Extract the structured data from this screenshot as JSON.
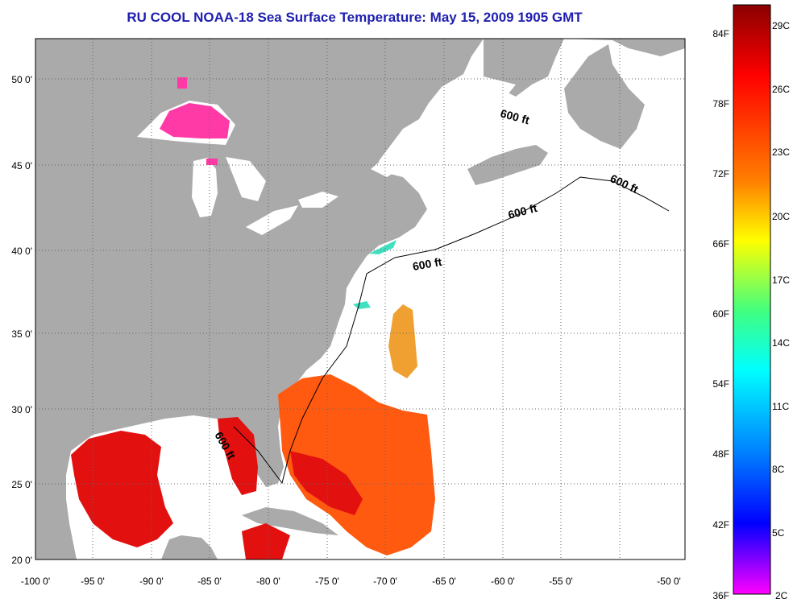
{
  "title": "RU COOL  NOAA-18  Sea Surface Temperature:  May 15, 2009 1905 GMT",
  "map": {
    "lon_labels": [
      "-100 0'",
      "-95 0'",
      "-90 0'",
      "-85 0'",
      "-80 0'",
      "-75 0'",
      "-70 0'",
      "-65 0'",
      "-60 0'",
      "-55 0'",
      "-50 0'"
    ],
    "lat_labels": [
      "50 0'",
      "45 0'",
      "40 0'",
      "35 0'",
      "30 0'",
      "25 0'",
      "20 0'"
    ],
    "isobath_labels": [
      "600 ft",
      "600 ft",
      "600 ft",
      "600 ft",
      "600 ft"
    ],
    "colors": {
      "land": "#aaaaaa",
      "ocean_missing": "#ffffff",
      "warm_water": "#e31010",
      "mid_water": "#ff6a10",
      "orange_water": "#f0a030",
      "cold_lake": "#ff3aa6",
      "coastal_cool": "#40e0c0"
    }
  },
  "colorbar": {
    "fahrenheit_labels": [
      "84F",
      "78F",
      "72F",
      "66F",
      "60F",
      "54F",
      "48F",
      "42F",
      "36F"
    ],
    "celsius_labels": [
      "29C",
      "26C",
      "23C",
      "20C",
      "17C",
      "14C",
      "11C",
      "8C",
      "5C",
      "2C"
    ],
    "gradient_colors": [
      "#8a0000",
      "#ff0000",
      "#ff8000",
      "#ffff00",
      "#40ff80",
      "#00ffff",
      "#0080ff",
      "#0000ff",
      "#ff00ff"
    ]
  }
}
